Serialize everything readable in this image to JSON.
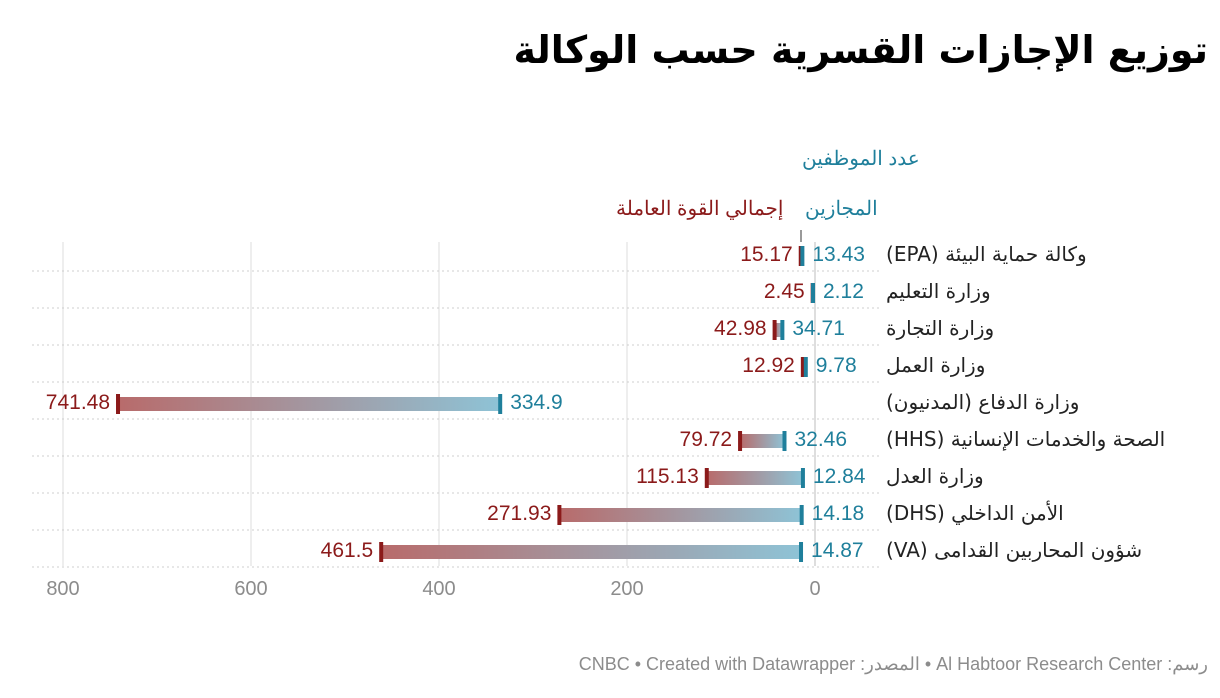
{
  "title": "توزيع الإجازات القسرية حسب الوكالة",
  "footer": "رسم: Al Habtoor Research Center • المصدر: CNBC • Created with Datawrapper",
  "colors": {
    "workforce": "#8b1a1a",
    "furloughed": "#1f7f9b",
    "grid": "#dcdcdc",
    "row_line": "#cfcfcf",
    "tick_text": "#8c8c8c",
    "label_text": "#222222"
  },
  "chart_data": {
    "type": "range-dot",
    "title": "توزيع الإجازات القسرية حسب الوكالة",
    "ylabel": "عدد الموظفين",
    "series": [
      {
        "name": "إجمالي القوة العاملة",
        "values": [
          15.17,
          2.45,
          42.98,
          12.92,
          741.48,
          79.72,
          115.13,
          271.93,
          461.5
        ]
      },
      {
        "name": "المجازين",
        "values": [
          13.43,
          2.12,
          34.71,
          9.78,
          334.9,
          32.46,
          12.84,
          14.18,
          14.87
        ]
      }
    ],
    "categories": [
      "وكالة حماية البيئة (EPA)",
      "وزارة التعليم",
      "وزارة التجارة",
      "وزارة العمل",
      "وزارة الدفاع (المدنيون)",
      "الصحة والخدمات الإنسانية (HHS)",
      "وزارة العدل",
      "الأمن الداخلي (DHS)",
      "شؤون المحاربين القدامى (VA)"
    ],
    "value_labels_total": [
      "15.17",
      "2.45",
      "42.98",
      "12.92",
      "741.48",
      "79.72",
      "115.13",
      "271.93",
      "461.5"
    ],
    "value_labels_furloughed": [
      "13.43",
      "2.12",
      "34.71",
      "9.78",
      "334.9",
      "32.46",
      "12.84",
      "14.18",
      "14.87"
    ],
    "xlim": [
      0,
      835
    ],
    "x_reversed": true,
    "x_ticks": [
      800,
      600,
      400,
      200,
      0
    ],
    "grid": true
  }
}
